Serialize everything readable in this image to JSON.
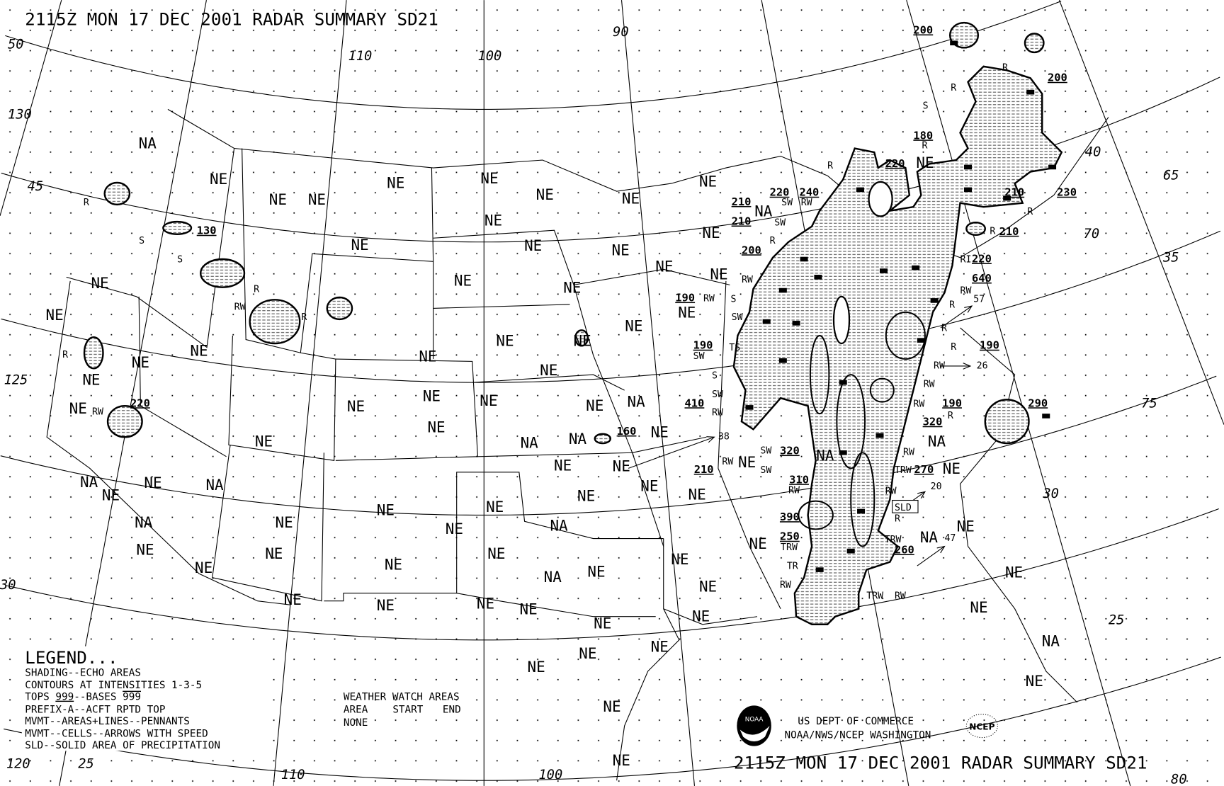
{
  "title": "2115Z MON 17 DEC 2001 RADAR SUMMARY SD21",
  "footer_title": "2115Z MON 17 DEC 2001 RADAR SUMMARY SD21",
  "legend": {
    "heading": "LEGEND...",
    "lines": [
      "SHADING--ECHO AREAS",
      "CONTOURS AT INTENSITIES 1-3-5",
      "PREFIX-A--ACFT RPTD TOP",
      "MVMT--AREAS+LINES--PENNANTS",
      "MVMT--CELLS--ARROWS WITH SPEED",
      "SLD--SOLID AREA OF PRECIPITATION"
    ],
    "tops_label": "TOPS ",
    "tops_sample": "999",
    "bases_label": "--BASES ",
    "bases_sample": "999"
  },
  "watch": {
    "heading": "WEATHER WATCH AREAS",
    "columns": [
      "AREA",
      "START",
      "END"
    ],
    "value": "NONE"
  },
  "credits": {
    "line1": "US DEPT OF COMMERCE",
    "line2": "NOAA/NWS/NCEP WASHINGTON",
    "noaa_logo": "NOAA",
    "ncep_logo": "NCEP"
  },
  "codes": {
    "ne": "NE",
    "na": "NA"
  },
  "echo_tops": [
    "200",
    "200",
    "180",
    "220",
    "220",
    "240",
    "210",
    "210",
    "200",
    "210",
    "230",
    "210",
    "220",
    "640",
    "190",
    "190",
    "190",
    "410",
    "190",
    "290",
    "320",
    "320",
    "210",
    "310",
    "270",
    "390",
    "250",
    "260",
    "160",
    "220",
    "130"
  ],
  "precip_types": [
    "R",
    "S",
    "S",
    "R",
    "RW",
    "R",
    "R",
    "RW",
    "S",
    "R",
    "R",
    "R",
    "R",
    "R",
    "R",
    "RI",
    "RW",
    "R",
    "R",
    "R",
    "RW",
    "RW",
    "RW",
    "R",
    "RW",
    "TRW",
    "RW",
    "R",
    "TRW",
    "TRW",
    "RW",
    "RW",
    "TR",
    "TRW",
    "RW",
    "SW",
    "SW",
    "RW",
    "RW",
    "SW",
    "S",
    "TS",
    "SW",
    "SW",
    "S",
    "RW",
    "RW",
    "R",
    "SW",
    "RW",
    "SW"
  ],
  "cell_speeds": [
    "57",
    "26",
    "38",
    "20",
    "47"
  ],
  "sld_label": "SLD",
  "graticule_labels": [
    "50",
    "130",
    "45",
    "125",
    "30",
    "120",
    "25",
    "110",
    "110",
    "100",
    "90",
    "100",
    "65",
    "70",
    "75",
    "40",
    "35",
    "30",
    "25",
    "80"
  ],
  "colors": {
    "ink": "#000000",
    "paper": "#ffffff"
  }
}
